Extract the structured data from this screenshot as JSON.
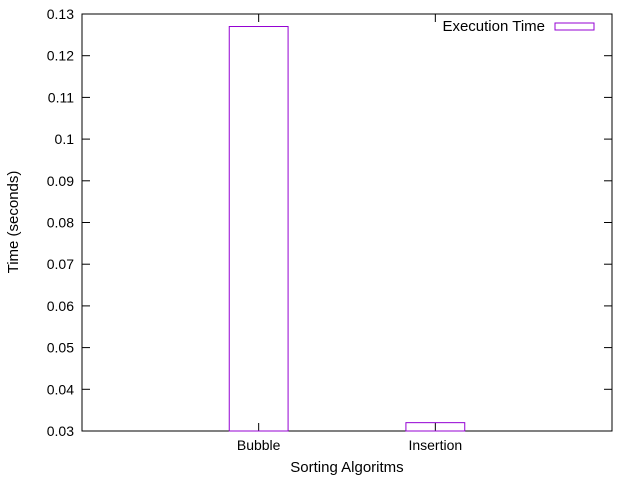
{
  "chart_data": {
    "type": "bar",
    "categories": [
      "Bubble",
      "Insertion"
    ],
    "series": [
      {
        "name": "Execution Time",
        "values": [
          0.127,
          0.032
        ]
      }
    ],
    "xlabel": "Sorting Algoritms",
    "ylabel": "Time (seconds)",
    "ylim": [
      0.03,
      0.13
    ],
    "yticks": [
      "0.03",
      "0.04",
      "0.05",
      "0.06",
      "0.07",
      "0.08",
      "0.09",
      "0.1",
      "0.11",
      "0.12",
      "0.13"
    ],
    "grid": false,
    "legend_position": "top-right",
    "colors": {
      "bar_outline": "#9400d3",
      "axis": "#000000"
    }
  }
}
